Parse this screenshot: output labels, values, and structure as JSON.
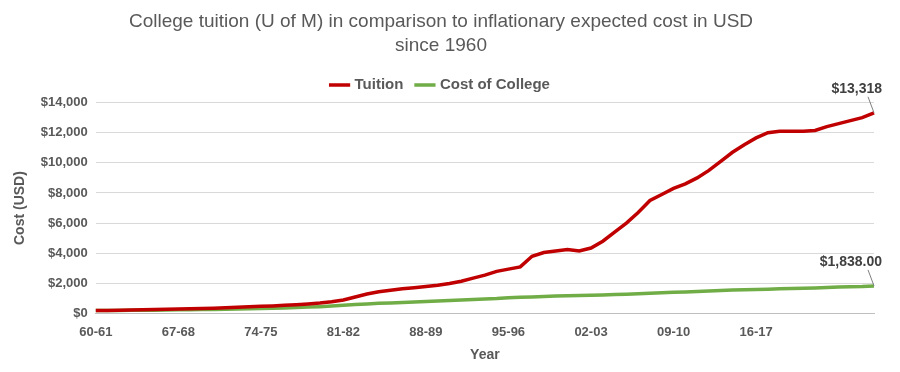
{
  "chart_data": {
    "type": "line",
    "title": [
      "College tuition (U of M) in comparison to inflationary expected cost in USD",
      "since 1960"
    ],
    "x_label": "Year",
    "y_label": "Cost (USD)",
    "categories": [
      "60-61",
      null,
      null,
      null,
      null,
      null,
      null,
      "67-68",
      null,
      null,
      null,
      null,
      null,
      null,
      "74-75",
      null,
      null,
      null,
      null,
      null,
      null,
      "81-82",
      null,
      null,
      null,
      null,
      null,
      null,
      "88-89",
      null,
      null,
      null,
      null,
      null,
      null,
      "95-96",
      null,
      null,
      null,
      null,
      null,
      null,
      "02-03",
      null,
      null,
      null,
      null,
      null,
      null,
      "09-10",
      null,
      null,
      null,
      null,
      null,
      null,
      "16-17",
      null,
      null,
      null,
      null,
      null,
      null,
      null,
      null,
      null,
      null
    ],
    "series": [
      {
        "name": "Tuition",
        "color": "#c00000",
        "values": [
          200,
          210,
          225,
          240,
          255,
          270,
          285,
          300,
          320,
          340,
          360,
          390,
          420,
          450,
          480,
          510,
          550,
          590,
          640,
          700,
          780,
          900,
          1100,
          1300,
          1450,
          1550,
          1650,
          1720,
          1800,
          1880,
          2000,
          2150,
          2350,
          2550,
          2800,
          2950,
          3100,
          3800,
          4050,
          4150,
          4250,
          4150,
          4350,
          4800,
          5400,
          6000,
          6700,
          7500,
          7900,
          8300,
          8600,
          9000,
          9500,
          10100,
          10700,
          11200,
          11650,
          12000,
          12100,
          12100,
          12100,
          12150,
          12400,
          12600,
          12800,
          13000,
          13318
        ],
        "value_labels": [
          null,
          null,
          null,
          null,
          null,
          null,
          null,
          null,
          null,
          null,
          null,
          null,
          null,
          null,
          null,
          null,
          null,
          null,
          null,
          null,
          null,
          null,
          null,
          null,
          null,
          null,
          null,
          null,
          null,
          null,
          null,
          null,
          null,
          null,
          null,
          null,
          null,
          null,
          null,
          null,
          null,
          null,
          null,
          null,
          null,
          null,
          null,
          null,
          null,
          null,
          null,
          null,
          null,
          null,
          null,
          null,
          null,
          null,
          null,
          null,
          null,
          null,
          null,
          null,
          null,
          null,
          "$13,318"
        ]
      },
      {
        "name": "Cost of College",
        "color": "#70ad47",
        "values": [
          200,
          205,
          210,
          215,
          220,
          230,
          240,
          250,
          260,
          270,
          280,
          290,
          300,
          315,
          330,
          350,
          375,
          400,
          430,
          460,
          500,
          550,
          600,
          640,
          680,
          710,
          740,
          770,
          800,
          830,
          870,
          900,
          940,
          970,
          1000,
          1050,
          1080,
          1100,
          1130,
          1160,
          1180,
          1200,
          1220,
          1240,
          1260,
          1290,
          1320,
          1350,
          1380,
          1410,
          1440,
          1470,
          1500,
          1530,
          1560,
          1580,
          1600,
          1620,
          1640,
          1660,
          1680,
          1700,
          1730,
          1760,
          1780,
          1800,
          1838
        ],
        "value_labels": [
          null,
          null,
          null,
          null,
          null,
          null,
          null,
          null,
          null,
          null,
          null,
          null,
          null,
          null,
          null,
          null,
          null,
          null,
          null,
          null,
          null,
          null,
          null,
          null,
          null,
          null,
          null,
          null,
          null,
          null,
          null,
          null,
          null,
          null,
          null,
          null,
          null,
          null,
          null,
          null,
          null,
          null,
          null,
          null,
          null,
          null,
          null,
          null,
          null,
          null,
          null,
          null,
          null,
          null,
          null,
          null,
          null,
          null,
          null,
          null,
          null,
          null,
          null,
          null,
          null,
          null,
          "$1,838.00"
        ]
      }
    ],
    "ylim": [
      0,
      14000
    ],
    "yticks": [
      {
        "value": 0,
        "label": "$0"
      },
      {
        "value": 2000,
        "label": "$2,000"
      },
      {
        "value": 4000,
        "label": "$4,000"
      },
      {
        "value": 6000,
        "label": "$6,000"
      },
      {
        "value": 8000,
        "label": "$8,000"
      },
      {
        "value": 10000,
        "label": "$10,000"
      },
      {
        "value": 12000,
        "label": "$12,000"
      },
      {
        "value": 14000,
        "label": "$14,000"
      }
    ],
    "grid": true,
    "legend": "top"
  }
}
